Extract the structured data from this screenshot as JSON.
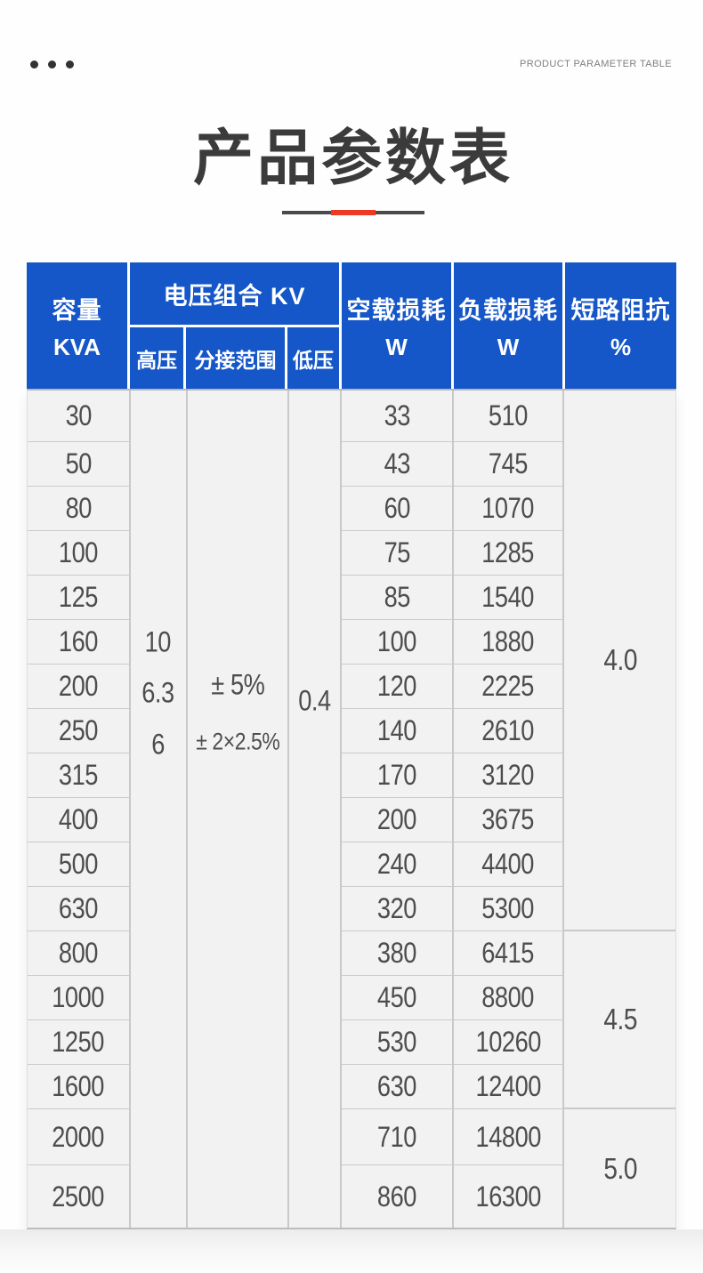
{
  "page": {
    "top_right_label": "PRODUCT PARAMETER TABLE",
    "title": "产品参数表",
    "icons": {
      "top_left": "three-dots"
    }
  },
  "colors": {
    "header_blue": "#1557c8",
    "accent_red": "#ee3a25",
    "body_bg": "#f2f2f3",
    "grid_line": "#c9c9c9",
    "title_text": "#3b3b3b",
    "number_text": "#4d4d4d"
  },
  "table": {
    "header": {
      "capacity": {
        "line1": "容量",
        "line2": "KVA"
      },
      "voltage_group": "电压组合 KV",
      "sub": {
        "high": "高压",
        "tap": "分接范围",
        "low": "低压"
      },
      "no_load": {
        "line1": "空载损耗",
        "line2": "W"
      },
      "load": {
        "line1": "负载损耗",
        "line2": "W"
      },
      "impedance": {
        "line1": "短路阻抗",
        "line2": "%"
      }
    },
    "merged": {
      "high_voltage": [
        "10",
        "6.3",
        "6"
      ],
      "tap_range": [
        "± 5%",
        "± 2×2.5%"
      ],
      "low_voltage": "0.4"
    },
    "rows": [
      {
        "kva": "30",
        "no_load": "33",
        "load": "510"
      },
      {
        "kva": "50",
        "no_load": "43",
        "load": "745"
      },
      {
        "kva": "80",
        "no_load": "60",
        "load": "1070"
      },
      {
        "kva": "100",
        "no_load": "75",
        "load": "1285"
      },
      {
        "kva": "125",
        "no_load": "85",
        "load": "1540"
      },
      {
        "kva": "160",
        "no_load": "100",
        "load": "1880"
      },
      {
        "kva": "200",
        "no_load": "120",
        "load": "2225"
      },
      {
        "kva": "250",
        "no_load": "140",
        "load": "2610"
      },
      {
        "kva": "315",
        "no_load": "170",
        "load": "3120"
      },
      {
        "kva": "400",
        "no_load": "200",
        "load": "3675"
      },
      {
        "kva": "500",
        "no_load": "240",
        "load": "4400"
      },
      {
        "kva": "630",
        "no_load": "320",
        "load": "5300"
      },
      {
        "kva": "800",
        "no_load": "380",
        "load": "6415"
      },
      {
        "kva": "1000",
        "no_load": "450",
        "load": "8800"
      },
      {
        "kva": "1250",
        "no_load": "530",
        "load": "10260"
      },
      {
        "kva": "1600",
        "no_load": "630",
        "load": "12400"
      },
      {
        "kva": "2000",
        "no_load": "710",
        "load": "14800"
      },
      {
        "kva": "2500",
        "no_load": "860",
        "load": "16300"
      }
    ],
    "impedance_groups": [
      {
        "value": "4.0",
        "row_span": 12
      },
      {
        "value": "4.5",
        "row_span": 4
      },
      {
        "value": "5.0",
        "row_span": 2
      }
    ]
  }
}
